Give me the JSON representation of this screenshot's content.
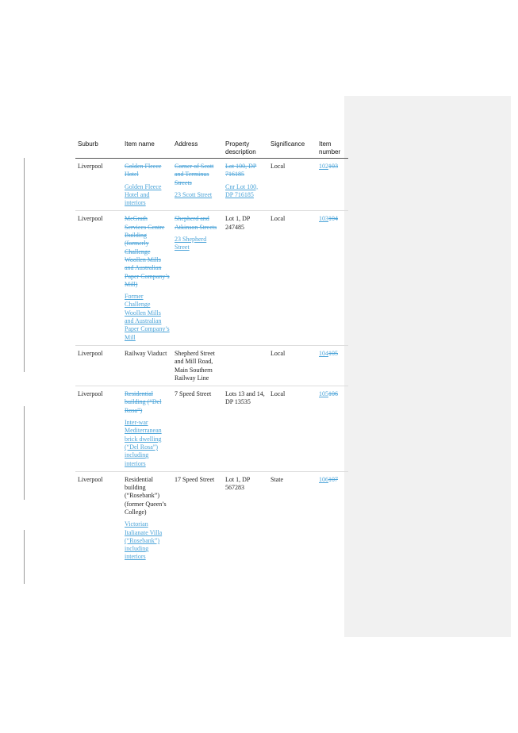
{
  "columns": {
    "suburb": "Suburb",
    "item_name": "Item name",
    "address": "Address",
    "property_description": "Property description",
    "significance": "Significance",
    "item_number": "Item number"
  },
  "rows": [
    {
      "suburb": "Liverpool",
      "name_deleted": "Golden Fleece Hotel",
      "name_inserted": "Golden Fleece Hotel and interiors",
      "address_deleted": "Corner of Scott and Terminus Streets",
      "address_inserted": "23 Scott Street",
      "property_deleted": "Lot 100, DP 716185",
      "property_inserted": "Cnr Lot 100, DP 716185",
      "significance": "Local",
      "item_inserted": "102",
      "item_deleted": "103"
    },
    {
      "suburb": "Liverpool",
      "name_deleted": "McGrath Services Centre Building (formerly Challenge Woollen Mills and Australian Paper Company’s Mill)",
      "name_inserted": "Former Challenge Woollen Mills and Australian Paper Company’s Mill",
      "address_deleted": "Shepherd and Atkinson Streets",
      "address_inserted": "23 Shepherd Street",
      "property": "Lot 1, DP 247485",
      "significance": "Local",
      "item_inserted": "103",
      "item_deleted": "104"
    },
    {
      "suburb": "Liverpool",
      "name": "Railway Viaduct",
      "address": "Shepherd Street and Mill Road, Main Southern Railway Line",
      "significance": "Local",
      "item_inserted": "104",
      "item_deleted": "105"
    },
    {
      "suburb": "Liverpool",
      "name_deleted": "Residential building (“Del Rosa”)",
      "name_inserted": "Inter-war Mediterranean brick dwelling (“Del Rosa”) including interiors",
      "address": "7 Speed Street",
      "property": "Lots 13 and 14, DP 13535",
      "significance": "Local",
      "item_inserted": "105",
      "item_deleted": "106"
    },
    {
      "suburb": "Liverpool",
      "name": "Residential building (“Rosebank”) (former Queen’s College)",
      "name_inserted": "Victorian Italianate Villa (“Rosebank”) including interiors",
      "address": "17 Speed Street",
      "property": "Lot 1, DP 567283",
      "significance": "State",
      "item_inserted": "106",
      "item_deleted": "107"
    }
  ]
}
